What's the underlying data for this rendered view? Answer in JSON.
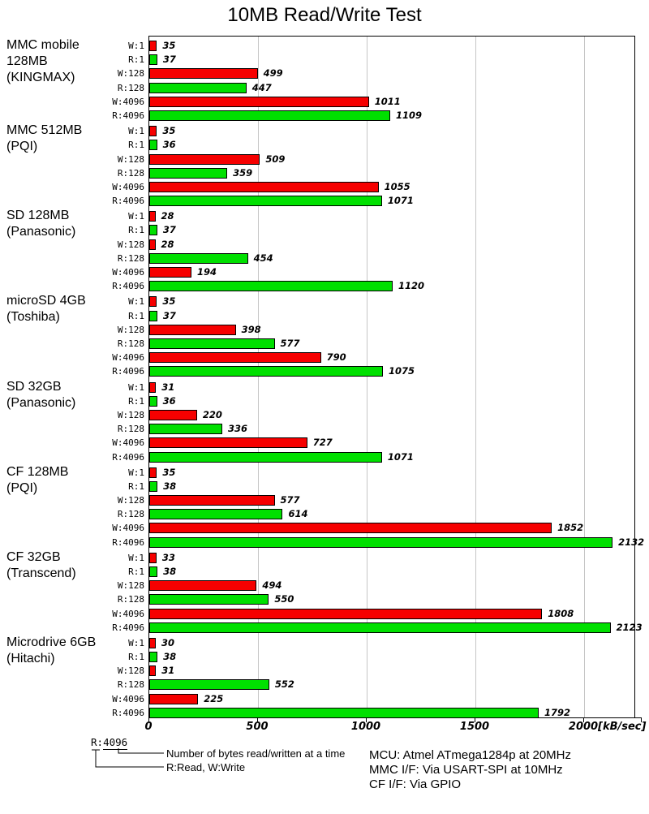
{
  "title": "10MB Read/Write Test",
  "chart_data": {
    "type": "bar",
    "orientation": "horizontal",
    "title": "10MB Read/Write Test",
    "unit_label": "[kB/sec]",
    "x_ticks": [
      0,
      500,
      1000,
      1500,
      2000
    ],
    "xlim": [
      0,
      2240
    ],
    "grid": true,
    "row_labels": [
      "W:1",
      "R:1",
      "W:128",
      "R:128",
      "W:4096",
      "R:4096"
    ],
    "series_colors": {
      "write": "#f60000",
      "read": "#00e000"
    },
    "groups": [
      {
        "label_lines": [
          "MMC mobile",
          "128MB",
          "(KINGMAX)"
        ],
        "values": [
          35,
          37,
          499,
          447,
          1011,
          1109
        ]
      },
      {
        "label_lines": [
          "MMC 512MB",
          "(PQI)"
        ],
        "values": [
          35,
          36,
          509,
          359,
          1055,
          1071
        ]
      },
      {
        "label_lines": [
          "SD 128MB",
          "(Panasonic)"
        ],
        "values": [
          28,
          37,
          28,
          454,
          194,
          1120
        ]
      },
      {
        "label_lines": [
          "microSD 4GB",
          "(Toshiba)"
        ],
        "values": [
          35,
          37,
          398,
          577,
          790,
          1075
        ]
      },
      {
        "label_lines": [
          "SD 32GB",
          "(Panasonic)"
        ],
        "values": [
          31,
          36,
          220,
          336,
          727,
          1071
        ]
      },
      {
        "label_lines": [
          "CF 128MB",
          "(PQI)"
        ],
        "values": [
          35,
          38,
          577,
          614,
          1852,
          2132
        ]
      },
      {
        "label_lines": [
          "CF 32GB",
          "(Transcend)"
        ],
        "values": [
          33,
          38,
          494,
          550,
          1808,
          2123
        ]
      },
      {
        "label_lines": [
          "Microdrive 6GB",
          "(Hitachi)"
        ],
        "values": [
          30,
          38,
          31,
          552,
          225,
          1792
        ]
      }
    ]
  },
  "legend": {
    "example_prefix": "R:",
    "example_bytes": "4096",
    "note_bytes": "Number of bytes read/written at a time",
    "note_rw": "R:Read, W:Write"
  },
  "info": {
    "lines": [
      "MCU: Atmel ATmega1284p at 20MHz",
      "MMC I/F: Via USART-SPI at 10MHz",
      "CF I/F: Via GPIO"
    ]
  }
}
